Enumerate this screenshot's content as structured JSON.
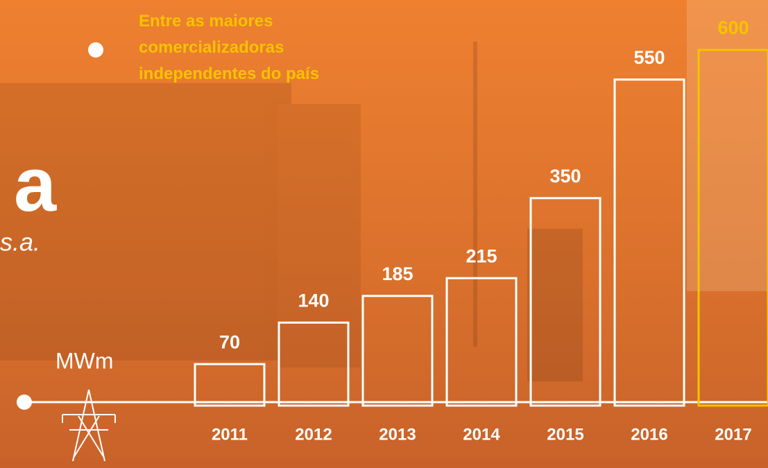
{
  "chart_data": {
    "type": "bar",
    "annotation": "Entre as maiores comercializadoras independentes do país",
    "logo": {
      "letter": "a",
      "suffix": "s.a."
    },
    "unit": "MWm",
    "categories": [
      "2011",
      "2012",
      "2013",
      "2014",
      "2015",
      "2016",
      "2017"
    ],
    "values": [
      70,
      140,
      185,
      215,
      350,
      550,
      600
    ],
    "colors": [
      "#ffffff",
      "#ffffff",
      "#ffffff",
      "#ffffff",
      "#ffffff",
      "#ffffff",
      "#f7c200"
    ],
    "ylim": [
      0,
      600
    ]
  }
}
